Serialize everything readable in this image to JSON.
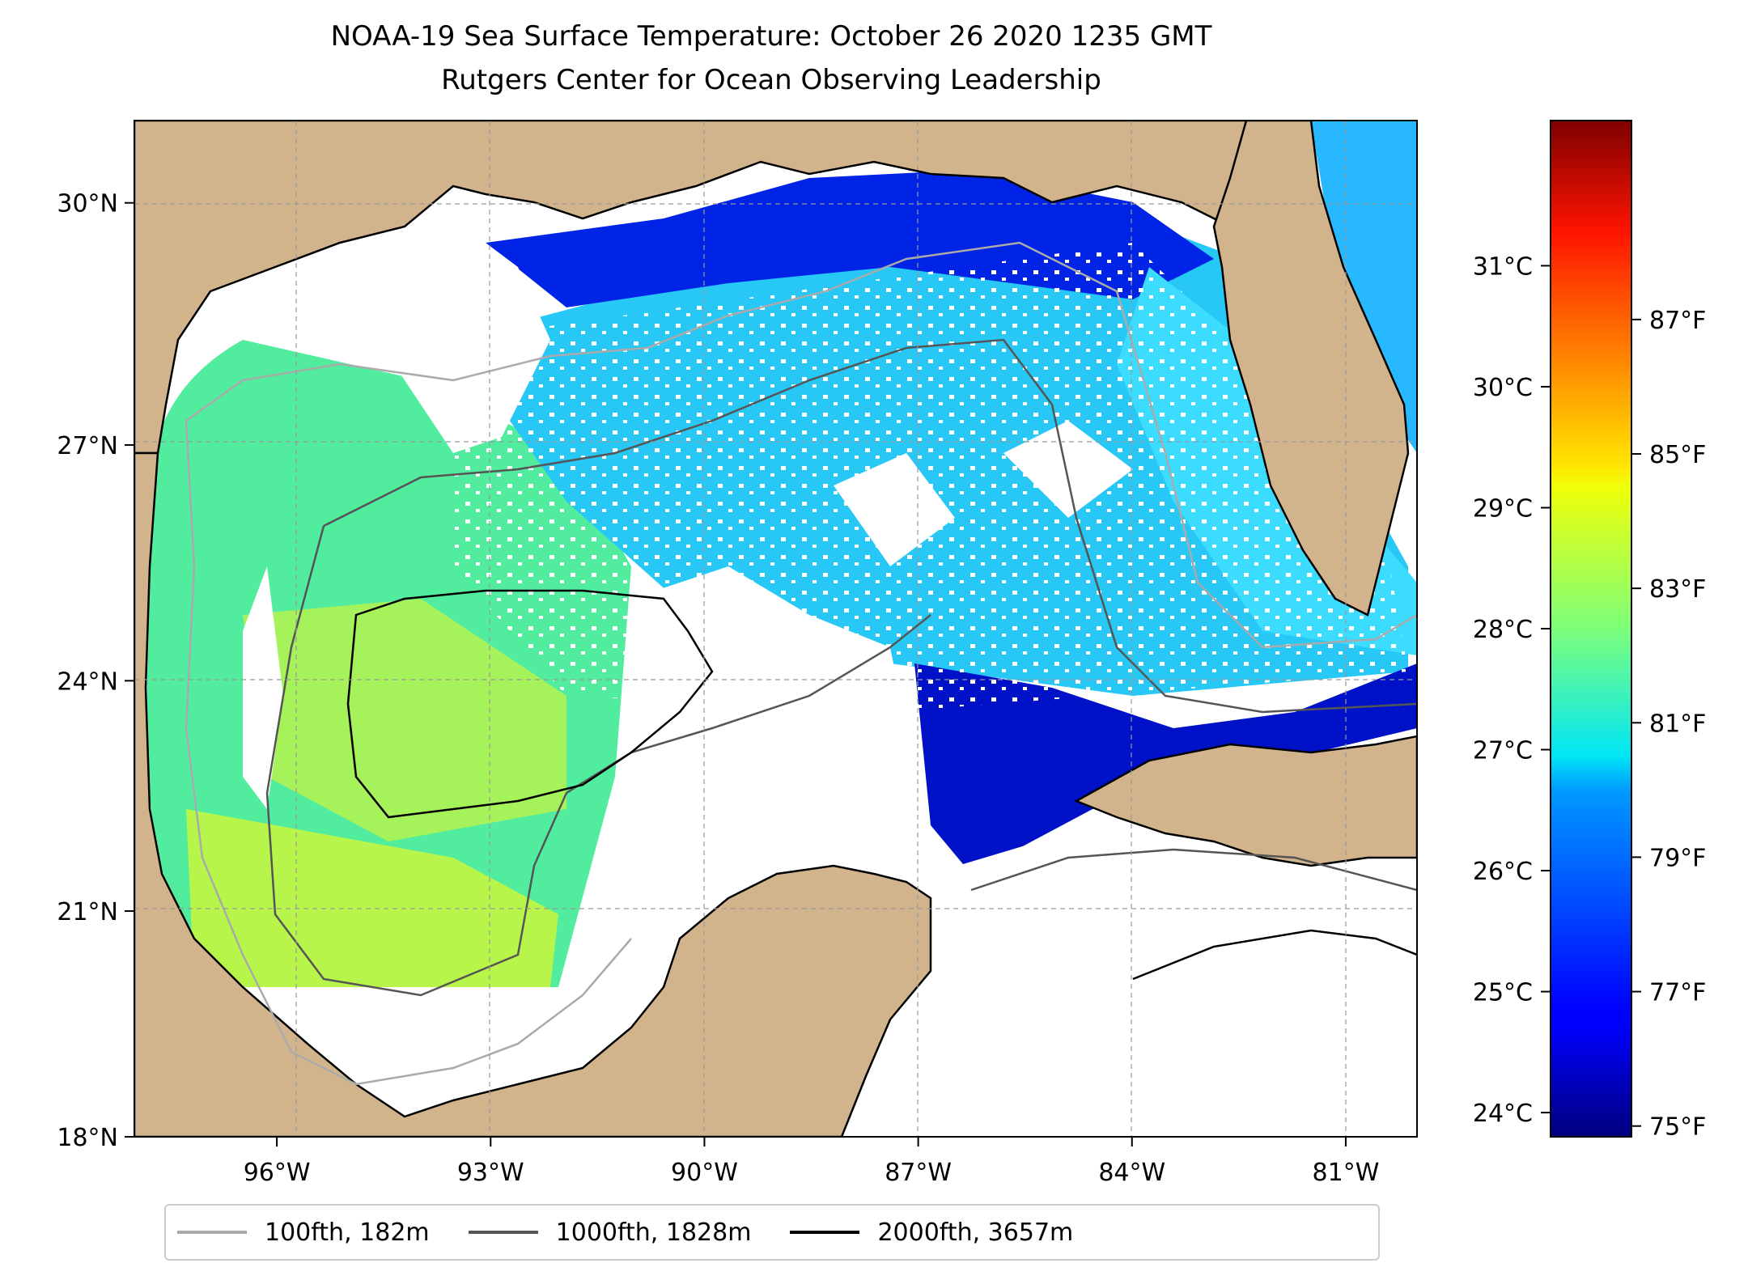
{
  "title": {
    "line1": "NOAA-19 Sea Surface Temperature: October 26 2020 1235 GMT",
    "line2": "Rutgers Center for Ocean Observing Leadership"
  },
  "map": {
    "lon_range": [
      -98,
      -80
    ],
    "lat_range": [
      18,
      31
    ],
    "lon_ticks": [
      {
        "value": -96,
        "label": "96°W"
      },
      {
        "value": -93,
        "label": "93°W"
      },
      {
        "value": -90,
        "label": "90°W"
      },
      {
        "value": -87,
        "label": "87°W"
      },
      {
        "value": -84,
        "label": "84°W"
      },
      {
        "value": -81,
        "label": "81°W"
      }
    ],
    "lat_ticks": [
      {
        "value": 18,
        "label": "18°N"
      },
      {
        "value": 21,
        "label": "21°N"
      },
      {
        "value": 24,
        "label": "24°N"
      },
      {
        "value": 27,
        "label": "27°N"
      },
      {
        "value": 30,
        "label": "30°N"
      }
    ],
    "gridlines": true,
    "land_color": "#d2b48c",
    "no_data_color": "#ffffff"
  },
  "colorbar": {
    "colormap": "jet",
    "celsius_range": [
      23.8,
      32.2
    ],
    "celsius_ticks": [
      {
        "value": 24,
        "label": "24°C"
      },
      {
        "value": 25,
        "label": "25°C"
      },
      {
        "value": 26,
        "label": "26°C"
      },
      {
        "value": 27,
        "label": "27°C"
      },
      {
        "value": 28,
        "label": "28°C"
      },
      {
        "value": 29,
        "label": "29°C"
      },
      {
        "value": 30,
        "label": "30°C"
      },
      {
        "value": 31,
        "label": "31°C"
      }
    ],
    "fahrenheit_ticks": [
      {
        "value": 75,
        "label": "75°F"
      },
      {
        "value": 77,
        "label": "77°F"
      },
      {
        "value": 79,
        "label": "79°F"
      },
      {
        "value": 81,
        "label": "81°F"
      },
      {
        "value": 83,
        "label": "83°F"
      },
      {
        "value": 85,
        "label": "85°F"
      },
      {
        "value": 87,
        "label": "87°F"
      }
    ]
  },
  "legend": {
    "items": [
      {
        "label": "100fth, 182m",
        "color": "#aaaaaa"
      },
      {
        "label": "1000fth, 1828m",
        "color": "#555555"
      },
      {
        "label": "2000fth, 3657m",
        "color": "#000000"
      }
    ]
  }
}
